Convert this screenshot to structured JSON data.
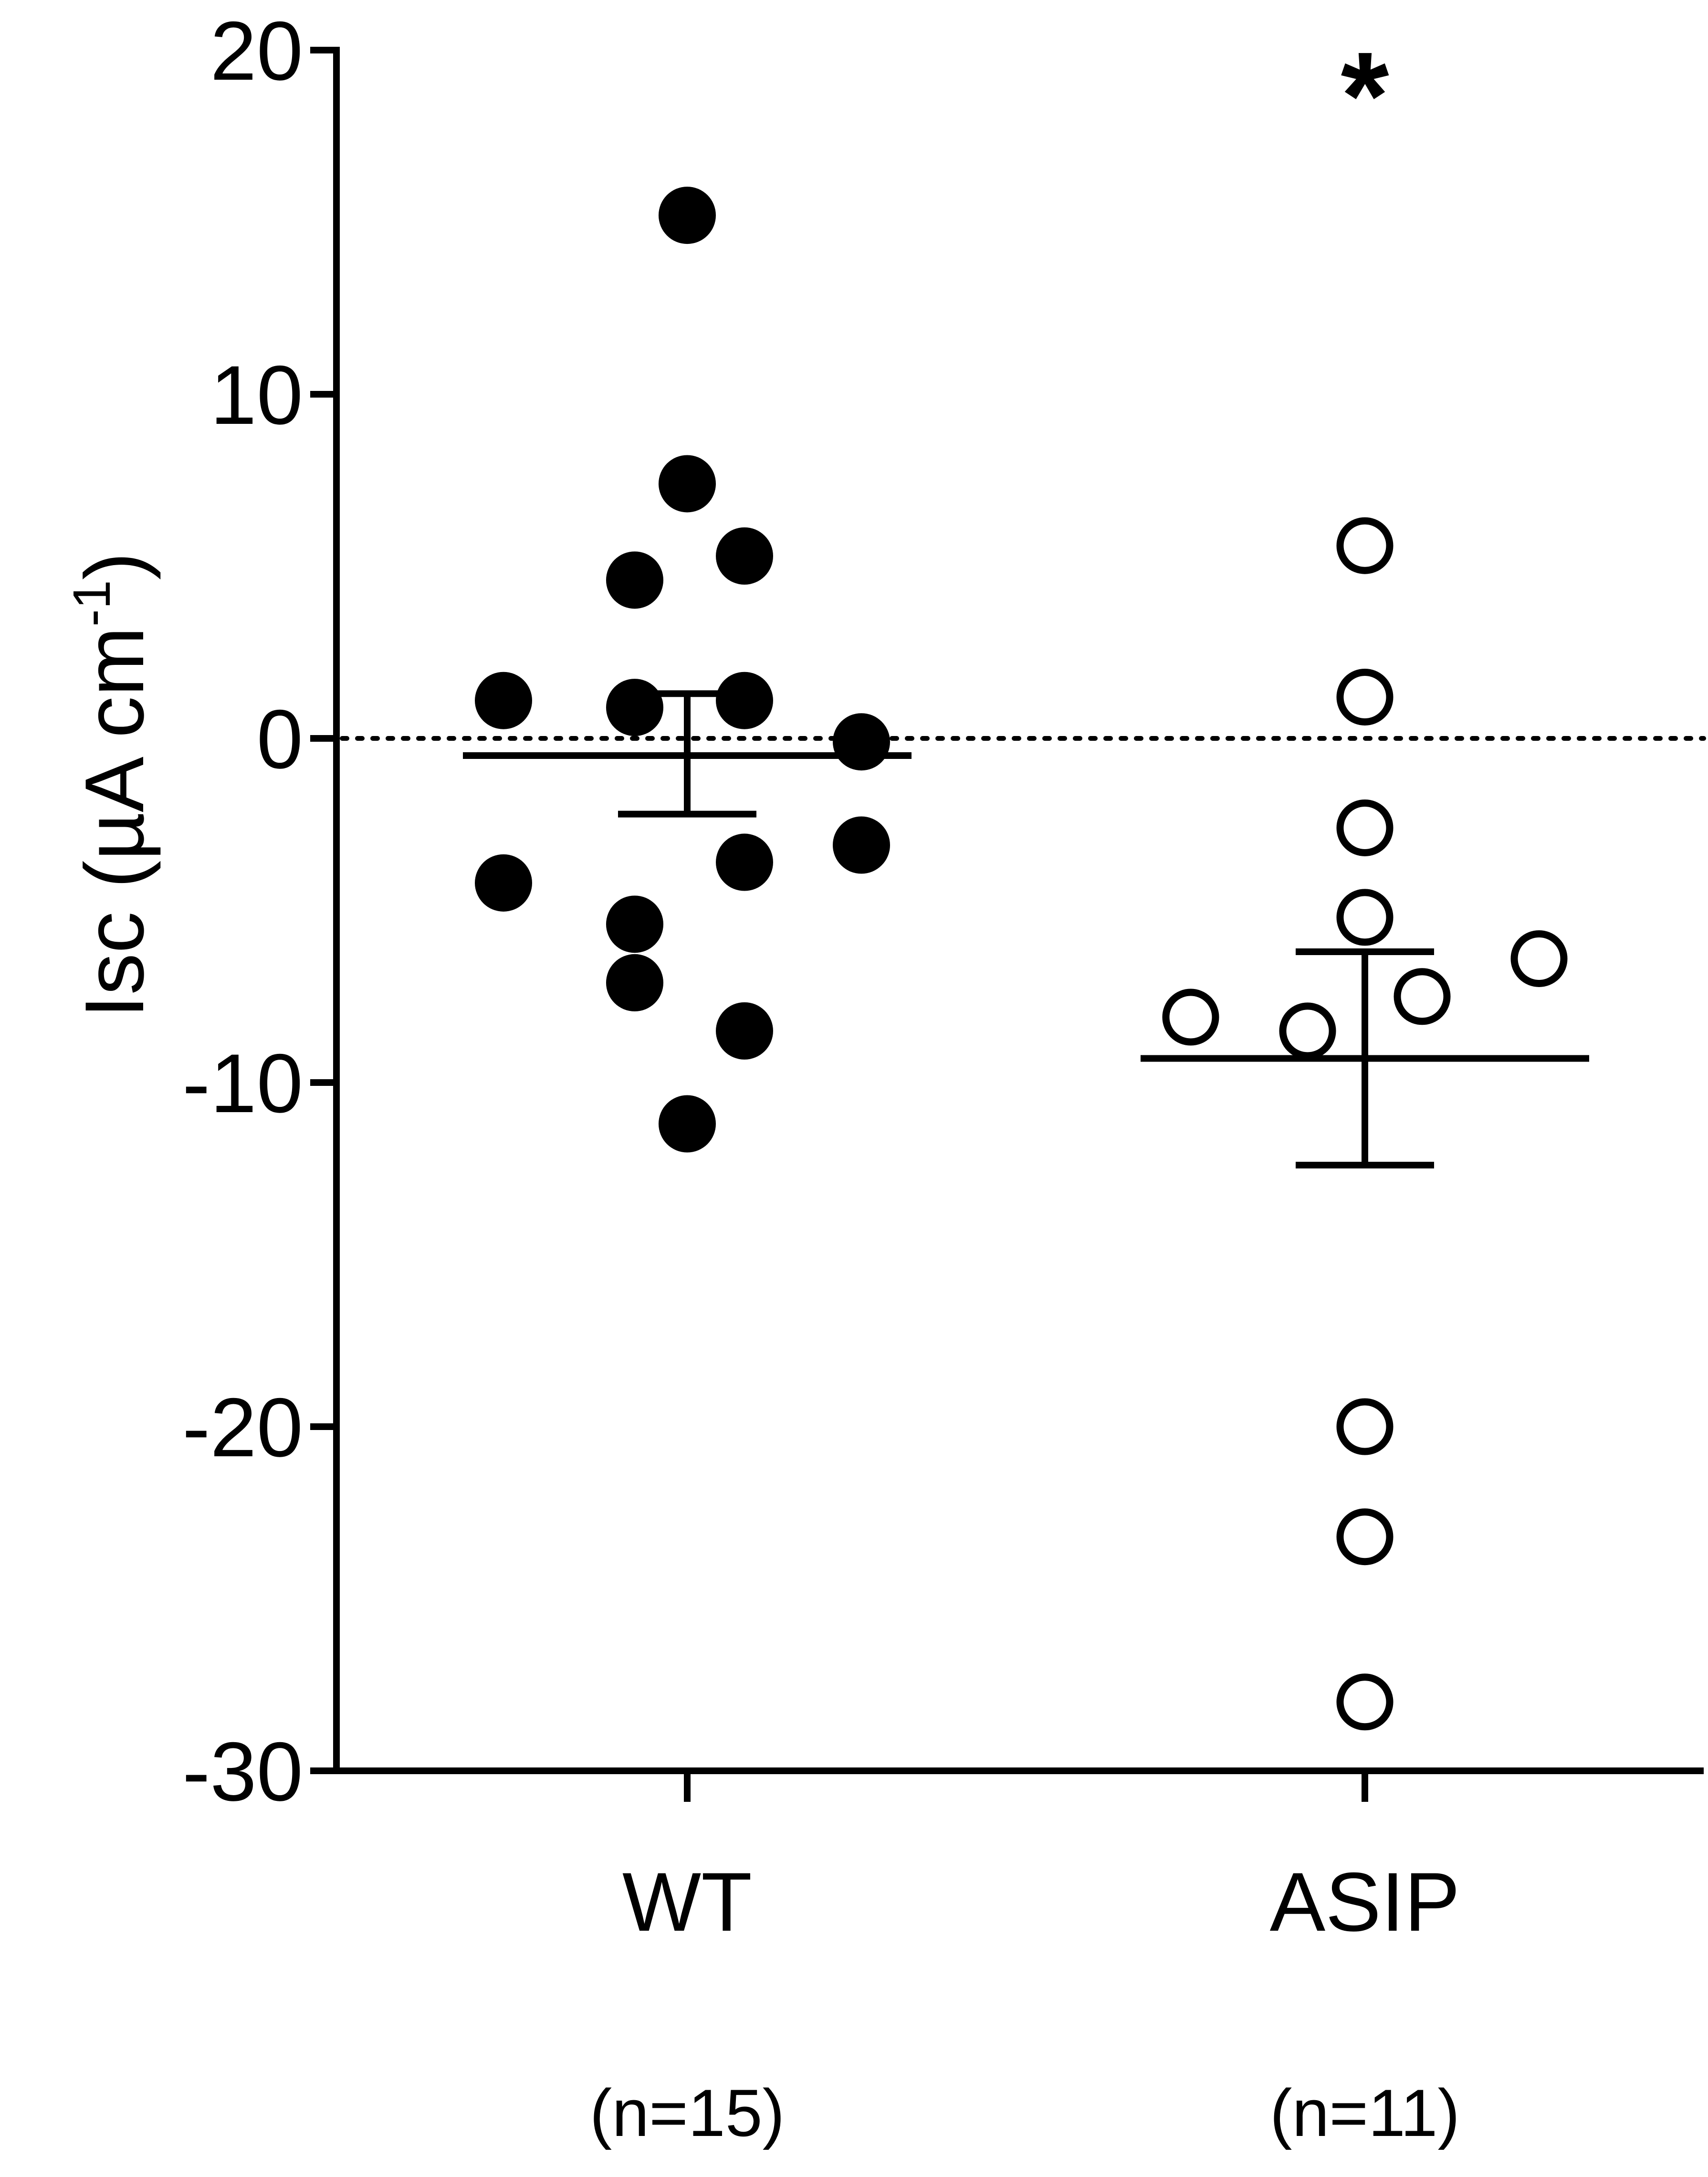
{
  "chart_data": {
    "type": "scatter",
    "ylabel_main": "Isc (µA cm",
    "ylabel_sup": "-1",
    "ylabel_close": ")",
    "ylim": [
      -30,
      20
    ],
    "yticks": [
      {
        "value": 20,
        "label": "20"
      },
      {
        "value": 10,
        "label": "10"
      },
      {
        "value": 0,
        "label": "0"
      },
      {
        "value": -10,
        "label": "-10"
      },
      {
        "value": -20,
        "label": "-20"
      },
      {
        "value": -30,
        "label": "-30"
      }
    ],
    "reference_line": 0,
    "groups": [
      {
        "label": "WT",
        "n_label": "(n=15)",
        "marker": "filled",
        "mean": -0.5,
        "sem_upper": 1.3,
        "sem_lower": -2.2,
        "values": [
          15.2,
          7.4,
          4.6,
          5.3,
          1.1,
          0.9,
          1.1,
          -0.1,
          -4.2,
          -5.4,
          -7.1,
          -3.6,
          -3.1,
          -8.5,
          -11.2
        ]
      },
      {
        "label": "ASIP",
        "n_label": "(n=11)",
        "marker": "open",
        "mean": -9.3,
        "sem_upper": -6.2,
        "sem_lower": -12.4,
        "significance": "*",
        "values": [
          5.6,
          1.2,
          -2.6,
          -5.2,
          -6.4,
          -7.5,
          -8.1,
          -8.5,
          -20.0,
          -23.2,
          -28.0
        ]
      }
    ]
  }
}
